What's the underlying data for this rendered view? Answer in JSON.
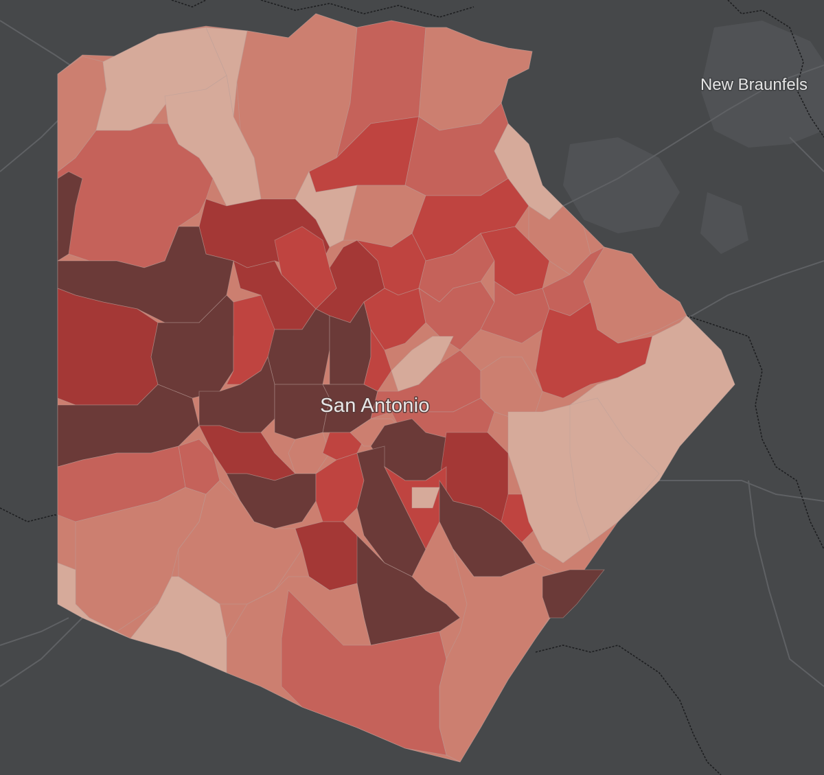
{
  "map": {
    "basemap": "dark-gray",
    "colors": {
      "background": "#46484a",
      "water_line": "#1e1f21",
      "road": "#5c5e61",
      "urban": "#505255",
      "class_1": "#d6aa9a",
      "class_2": "#cc7f70",
      "class_3": "#c5625a",
      "class_4": "#bf4440",
      "class_5": "#a43836",
      "class_6": "#6b3a38"
    },
    "labels": {
      "primary_city": "San Antonio",
      "secondary_city": "New Braunfels"
    }
  }
}
